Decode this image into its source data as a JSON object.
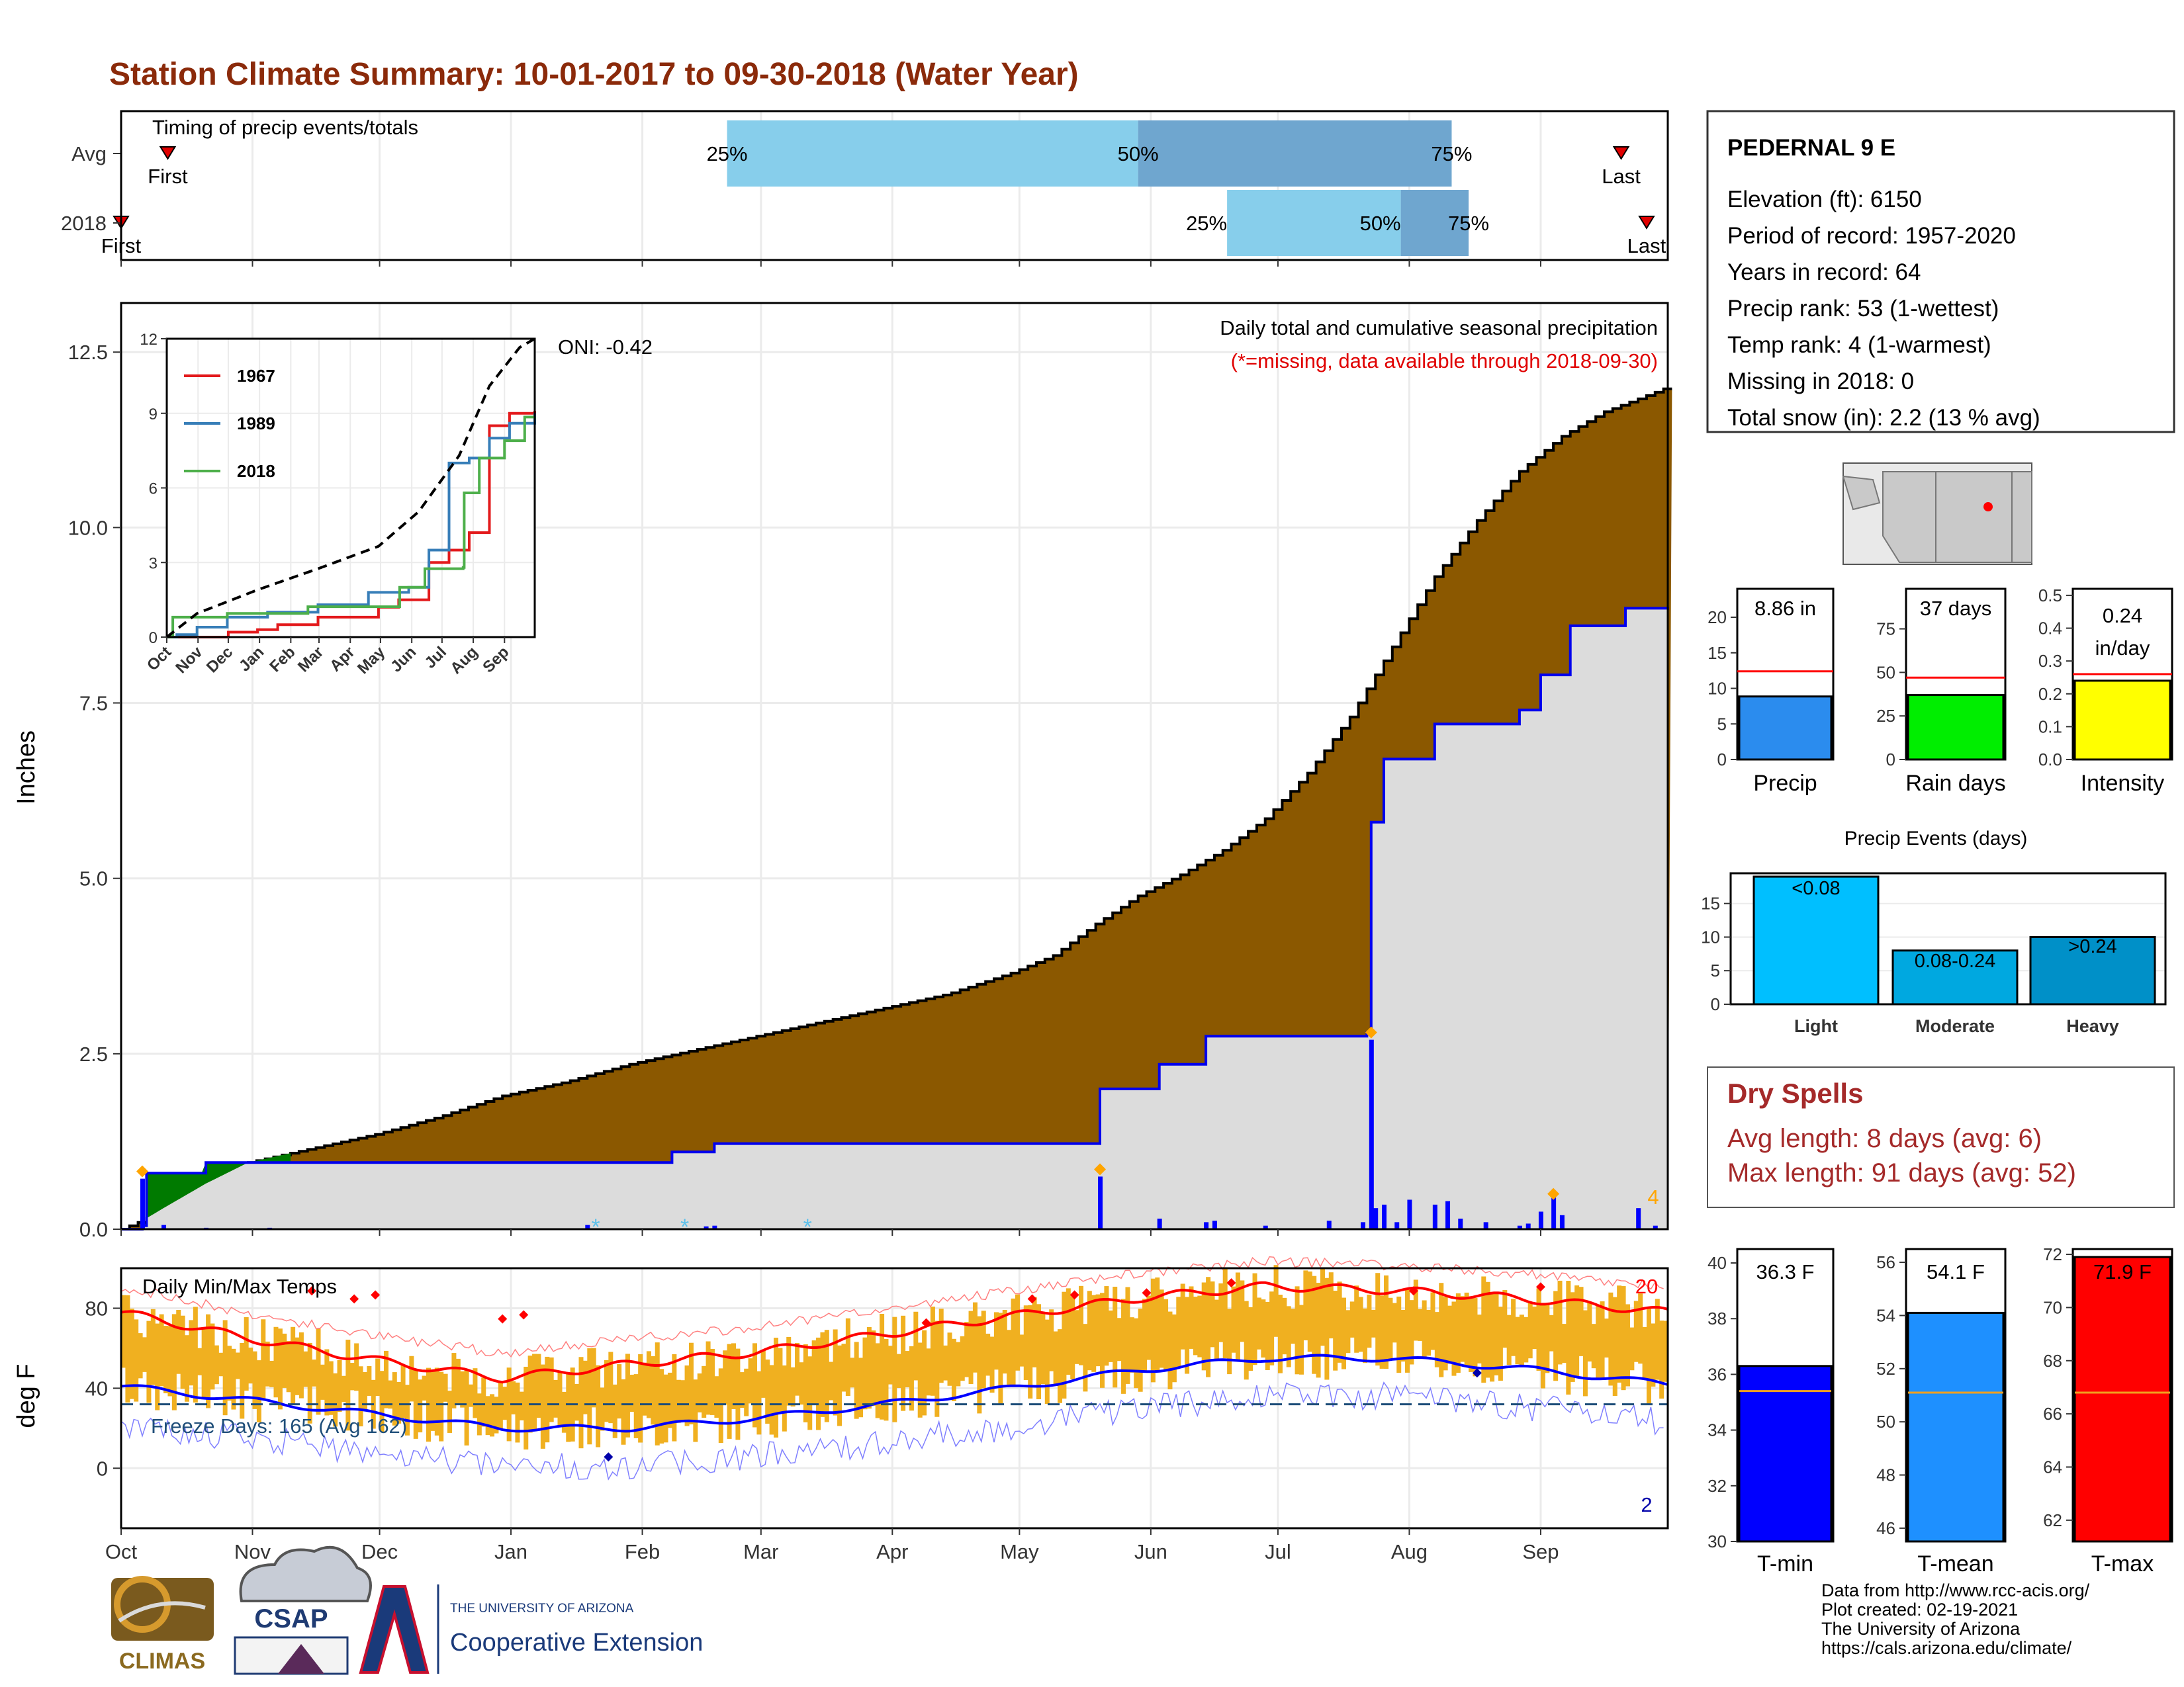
{
  "title": "Station Climate Summary: 10-01-2017 to 09-30-2018 (Water Year)",
  "months": [
    "Oct",
    "Nov",
    "Dec",
    "Jan",
    "Feb",
    "Mar",
    "Apr",
    "May",
    "Jun",
    "Jul",
    "Aug",
    "Sep"
  ],
  "timing_panel": {
    "title": "Timing of precip events/totals",
    "rows": [
      {
        "label": "Avg",
        "first_label": "First",
        "last_label": "Last",
        "p25": "25%",
        "p50": "50%",
        "p75": "75%"
      },
      {
        "label": "2018",
        "first_label": "First",
        "last_label": "Last",
        "p25": "25%",
        "p50": "50%",
        "p75": "75%"
      }
    ]
  },
  "precip_panel": {
    "ylabel": "Inches",
    "yticks": [
      "0.0",
      "2.5",
      "5.0",
      "7.5",
      "10.0",
      "12.5"
    ],
    "title": "Daily total and cumulative seasonal precipitation",
    "note": "(*=missing, data available through 2018-09-30)",
    "count_label": "4",
    "oni": "ONI: -0.42"
  },
  "inset": {
    "yticks": [
      "0",
      "3",
      "6",
      "9",
      "12"
    ],
    "months": [
      "Oct",
      "Nov",
      "Dec",
      "Jan",
      "Feb",
      "Mar",
      "Apr",
      "May",
      "Jun",
      "Jul",
      "Aug",
      "Sep"
    ],
    "legend": [
      "1967",
      "1989",
      "2018"
    ]
  },
  "temp_panel": {
    "ylabel": "deg F",
    "title": "Daily Min/Max Temps",
    "yticks": [
      "0",
      "40",
      "80"
    ],
    "freeze": "Freeze Days: 165 (Avg 162)",
    "max_count": "20",
    "min_count": "2"
  },
  "station": {
    "name": "PEDERNAL 9 E",
    "lines": [
      "Elevation (ft): 6150",
      "Period of record: 1957-2020",
      "Years in record: 64",
      "Precip rank: 53 (1-wettest)",
      "Temp rank: 4 (1-warmest)",
      "Missing in 2018: 0",
      "Total snow (in): 2.2 (13 % avg)"
    ]
  },
  "mini_bars": [
    {
      "label": "Precip",
      "value_text": "8.86 in",
      "yticks": [
        "0",
        "5",
        "10",
        "15",
        "20"
      ]
    },
    {
      "label": "Rain days",
      "value_text": "37 days",
      "yticks": [
        "0",
        "25",
        "50",
        "75"
      ]
    },
    {
      "label": "Intensity",
      "value_text": "0.24 in/day",
      "value_line1": "0.24",
      "value_line2": "in/day",
      "yticks": [
        "0.0",
        "0.1",
        "0.2",
        "0.3",
        "0.4",
        "0.5"
      ]
    }
  ],
  "events": {
    "title": "Precip Events (days)",
    "yticks": [
      "0",
      "5",
      "10",
      "15"
    ],
    "bars": [
      {
        "label": "Light",
        "text": "<0.08"
      },
      {
        "label": "Moderate",
        "text": "0.08-0.24"
      },
      {
        "label": "Heavy",
        "text": ">0.24"
      }
    ]
  },
  "dry_spells": {
    "title": "Dry Spells",
    "avg": "Avg length: 8 days (avg: 6)",
    "max": "Max length: 91 days (avg: 52)"
  },
  "temp_bars": [
    {
      "label": "T-min",
      "value_text": "36.3 F",
      "yticks": [
        "30",
        "32",
        "34",
        "36",
        "38",
        "40"
      ]
    },
    {
      "label": "T-mean",
      "value_text": "54.1 F",
      "yticks": [
        "46",
        "48",
        "50",
        "52",
        "54",
        "56"
      ]
    },
    {
      "label": "T-max",
      "value_text": "71.9 F",
      "yticks": [
        "62",
        "64",
        "66",
        "68",
        "70",
        "72"
      ]
    }
  ],
  "footer": [
    "Data from http://www.rcc-acis.org/",
    "Plot created: 02-19-2021",
    "The University of Arizona",
    "https://cals.arizona.edu/climate/"
  ],
  "logos": {
    "climas": "CLIMAS",
    "csap": "CSAP",
    "ua_small": "THE UNIVERSITY OF ARIZONA",
    "ua_big": "Cooperative Extension"
  },
  "colors": {
    "title": "#8b2a0a",
    "cumulative_avg": "#8b5800",
    "cumulative_2018": "#0000ee",
    "deficit_fill": "#dcdcdc",
    "surplus_fill": "#007a00",
    "precip_bar": "#2b8cee",
    "rain_days_bar": "#00ee00",
    "intensity_bar": "#ffff00",
    "light_bar": "#00bfff",
    "moderate_bar": "#00a8e0",
    "heavy_bar": "#0090c8",
    "tmin_bar": "#0000ff",
    "tmean_bar": "#1e90ff",
    "tmax_bar": "#ff0000",
    "dry_spells": "#a52a2a"
  },
  "chart_data": [
    {
      "type": "bar",
      "name": "timing",
      "xrange": [
        0,
        365
      ],
      "rows": [
        {
          "label": "Avg",
          "first": 11,
          "last": 354,
          "p25": 143,
          "p50": 240,
          "p75": 314
        },
        {
          "label": "2018",
          "first": 0,
          "last": 360,
          "p25": 261,
          "p50": 302,
          "p75": 318
        }
      ]
    },
    {
      "type": "area",
      "name": "cumulative precipitation",
      "ylabel": "Inches",
      "ylim": [
        0,
        13.2
      ],
      "x_day": [
        0,
        5,
        10,
        20,
        30,
        45,
        60,
        75,
        90,
        105,
        120,
        135,
        150,
        165,
        180,
        195,
        210,
        220,
        230,
        240,
        250,
        260,
        270,
        280,
        290,
        300,
        310,
        320,
        330,
        340,
        350,
        360,
        365
      ],
      "avg_cumulative": [
        0,
        0.12,
        0.3,
        0.65,
        0.95,
        1.15,
        1.35,
        1.6,
        1.9,
        2.1,
        2.35,
        2.55,
        2.75,
        2.95,
        3.15,
        3.35,
        3.65,
        3.9,
        4.35,
        4.75,
        5.05,
        5.4,
        5.85,
        6.5,
        7.3,
        8.3,
        9.3,
        10.1,
        10.8,
        11.3,
        11.65,
        11.88,
        12.0
      ],
      "obs_2018": [
        [
          0,
          0
        ],
        [
          5,
          0.05
        ],
        [
          6,
          0.8
        ],
        [
          20,
          0.95
        ],
        [
          60,
          0.95
        ],
        [
          130,
          1.1
        ],
        [
          140,
          1.22
        ],
        [
          230,
          1.22
        ],
        [
          231,
          2.0
        ],
        [
          245,
          2.35
        ],
        [
          256,
          2.75
        ],
        [
          294,
          2.8
        ],
        [
          295,
          5.8
        ],
        [
          298,
          6.7
        ],
        [
          310,
          7.2
        ],
        [
          330,
          7.4
        ],
        [
          335,
          7.9
        ],
        [
          342,
          8.6
        ],
        [
          355,
          8.85
        ],
        [
          365,
          8.86
        ]
      ],
      "daily_precip": [
        [
          5,
          0.72
        ],
        [
          10,
          0.06
        ],
        [
          20,
          0.02
        ],
        [
          35,
          0.02
        ],
        [
          110,
          0.06
        ],
        [
          138,
          0.04
        ],
        [
          140,
          0.05
        ],
        [
          231,
          0.75
        ],
        [
          245,
          0.15
        ],
        [
          256,
          0.1
        ],
        [
          258,
          0.12
        ],
        [
          270,
          0.05
        ],
        [
          285,
          0.12
        ],
        [
          293,
          0.1
        ],
        [
          295,
          2.7
        ],
        [
          296,
          0.3
        ],
        [
          298,
          0.35
        ],
        [
          301,
          0.1
        ],
        [
          304,
          0.42
        ],
        [
          310,
          0.35
        ],
        [
          313,
          0.4
        ],
        [
          316,
          0.15
        ],
        [
          322,
          0.1
        ],
        [
          330,
          0.05
        ],
        [
          332,
          0.08
        ],
        [
          335,
          0.25
        ],
        [
          338,
          0.45
        ],
        [
          340,
          0.2
        ],
        [
          358,
          0.3
        ],
        [
          362,
          0.05
        ]
      ],
      "missing_days": [
        112,
        133,
        162
      ]
    },
    {
      "type": "line",
      "name": "inset cumulative comparison",
      "ylim": [
        0,
        12
      ],
      "xlim": [
        0,
        365
      ],
      "series": [
        {
          "name": "1967",
          "points": [
            [
              0,
              0
            ],
            [
              60,
              0
            ],
            [
              61,
              0.2
            ],
            [
              90,
              0.3
            ],
            [
              110,
              0.5
            ],
            [
              150,
              0.8
            ],
            [
              200,
              0.8
            ],
            [
              210,
              1.2
            ],
            [
              230,
              1.5
            ],
            [
              260,
              3.0
            ],
            [
              280,
              3.5
            ],
            [
              300,
              4.2
            ],
            [
              320,
              8.5
            ],
            [
              340,
              9.0
            ],
            [
              365,
              9.1
            ]
          ]
        },
        {
          "name": "1989",
          "points": [
            [
              0,
              0
            ],
            [
              10,
              0.1
            ],
            [
              30,
              0.4
            ],
            [
              60,
              0.8
            ],
            [
              100,
              1.0
            ],
            [
              150,
              1.3
            ],
            [
              200,
              1.8
            ],
            [
              240,
              2.0
            ],
            [
              260,
              3.5
            ],
            [
              280,
              7.0
            ],
            [
              300,
              7.2
            ],
            [
              320,
              8.0
            ],
            [
              340,
              8.6
            ],
            [
              365,
              9.0
            ]
          ]
        },
        {
          "name": "2018",
          "points": [
            [
              0,
              0
            ],
            [
              5,
              0.05
            ],
            [
              6,
              0.8
            ],
            [
              60,
              0.95
            ],
            [
              140,
              1.22
            ],
            [
              230,
              1.22
            ],
            [
              231,
              2.0
            ],
            [
              256,
              2.75
            ],
            [
              294,
              2.8
            ],
            [
              295,
              5.8
            ],
            [
              310,
              7.2
            ],
            [
              335,
              7.9
            ],
            [
              355,
              8.85
            ],
            [
              365,
              8.86
            ]
          ]
        },
        {
          "name": "Avg",
          "points": [
            [
              0,
              0
            ],
            [
              30,
              0.95
            ],
            [
              90,
              1.9
            ],
            [
              150,
              2.75
            ],
            [
              210,
              3.65
            ],
            [
              250,
              5.05
            ],
            [
              290,
              7.3
            ],
            [
              320,
              10.1
            ],
            [
              350,
              11.65
            ],
            [
              365,
              12.0
            ]
          ]
        }
      ]
    },
    {
      "type": "bar",
      "name": "daily temperatures",
      "ylabel": "deg F",
      "ylim": [
        -30,
        100
      ],
      "avg_max": [
        [
          0,
          78
        ],
        [
          30,
          65
        ],
        [
          60,
          54
        ],
        [
          90,
          45
        ],
        [
          120,
          52
        ],
        [
          150,
          58
        ],
        [
          180,
          67
        ],
        [
          210,
          76
        ],
        [
          240,
          85
        ],
        [
          270,
          91
        ],
        [
          300,
          89
        ],
        [
          330,
          85
        ],
        [
          365,
          78
        ]
      ],
      "avg_min": [
        [
          0,
          41
        ],
        [
          30,
          34
        ],
        [
          60,
          27
        ],
        [
          90,
          20
        ],
        [
          120,
          20
        ],
        [
          150,
          25
        ],
        [
          180,
          32
        ],
        [
          210,
          40
        ],
        [
          240,
          49
        ],
        [
          270,
          55
        ],
        [
          300,
          55
        ],
        [
          330,
          50
        ],
        [
          365,
          42
        ]
      ],
      "freeze_line": 32
    },
    {
      "type": "bar",
      "name": "annual precipitation",
      "ylim": [
        0,
        24
      ],
      "value": 8.86,
      "avg": 12.4
    },
    {
      "type": "bar",
      "name": "rain days",
      "ylim": [
        0,
        98
      ],
      "value": 37,
      "avg": 47
    },
    {
      "type": "bar",
      "name": "intensity",
      "ylim": [
        0,
        0.52
      ],
      "value": 0.24,
      "avg": 0.26
    },
    {
      "type": "bar",
      "name": "precip events",
      "categories": [
        "Light",
        "Moderate",
        "Heavy"
      ],
      "values": [
        19,
        8,
        10
      ],
      "ylim": [
        0,
        19.5
      ]
    },
    {
      "type": "bar",
      "name": "T-min",
      "ylim": [
        30,
        40.5
      ],
      "value": 36.3,
      "avg": 35.4
    },
    {
      "type": "bar",
      "name": "T-mean",
      "ylim": [
        45.5,
        56.5
      ],
      "value": 54.1,
      "avg": 51.1
    },
    {
      "type": "bar",
      "name": "T-max",
      "ylim": [
        61.2,
        72.2
      ],
      "value": 71.9,
      "avg": 66.8
    }
  ]
}
